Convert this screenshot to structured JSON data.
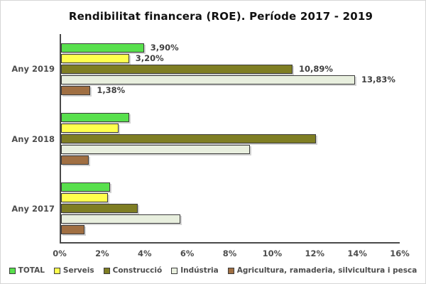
{
  "title": "Rendibilitat financera (ROE). Període 2017 - 2019",
  "colors": {
    "axis_line": "#4a4a4a",
    "text": "#4d4d4d",
    "data_label": "#404040",
    "bar_border": "#3c3c3c",
    "frame_border": "#d6d6d6",
    "background": "#ffffff"
  },
  "chart_data": {
    "type": "bar",
    "orientation": "horizontal",
    "title": "Rendibilitat financera (ROE). Període 2017 - 2019",
    "categories": [
      "Any 2019",
      "Any 2018",
      "Any 2017"
    ],
    "series": [
      {
        "name": "TOTAL",
        "color": "#58e04d",
        "values": [
          3.9,
          3.2,
          2.3
        ],
        "labels": [
          "3,90%",
          null,
          null
        ]
      },
      {
        "name": "Serveis",
        "color": "#ffff4d",
        "values": [
          3.2,
          2.7,
          2.2
        ],
        "labels": [
          "3,20%",
          null,
          null
        ]
      },
      {
        "name": "Construcció",
        "color": "#7f7e23",
        "values": [
          10.89,
          12.0,
          3.6
        ],
        "labels": [
          "10,89%",
          null,
          null
        ]
      },
      {
        "name": "Indústria",
        "color": "#e8efde",
        "values": [
          13.83,
          8.9,
          5.6
        ],
        "labels": [
          "13,83%",
          null,
          null
        ]
      },
      {
        "name": "Agricultura, ramaderia, silvicultura i pesca",
        "color": "#a06f42",
        "values": [
          1.38,
          1.3,
          1.1
        ],
        "labels": [
          "1,38%",
          null,
          null
        ]
      }
    ],
    "xlim": [
      0,
      16
    ],
    "x_tick_labels": [
      "0%",
      "2%",
      "4%",
      "6%",
      "8%",
      "10%",
      "12%",
      "14%",
      "16%"
    ],
    "x_tick_values": [
      0,
      2,
      4,
      6,
      8,
      10,
      12,
      14,
      16
    ],
    "grid": false,
    "legend_position": "bottom",
    "data_labels_shown_for": "Any 2019"
  }
}
